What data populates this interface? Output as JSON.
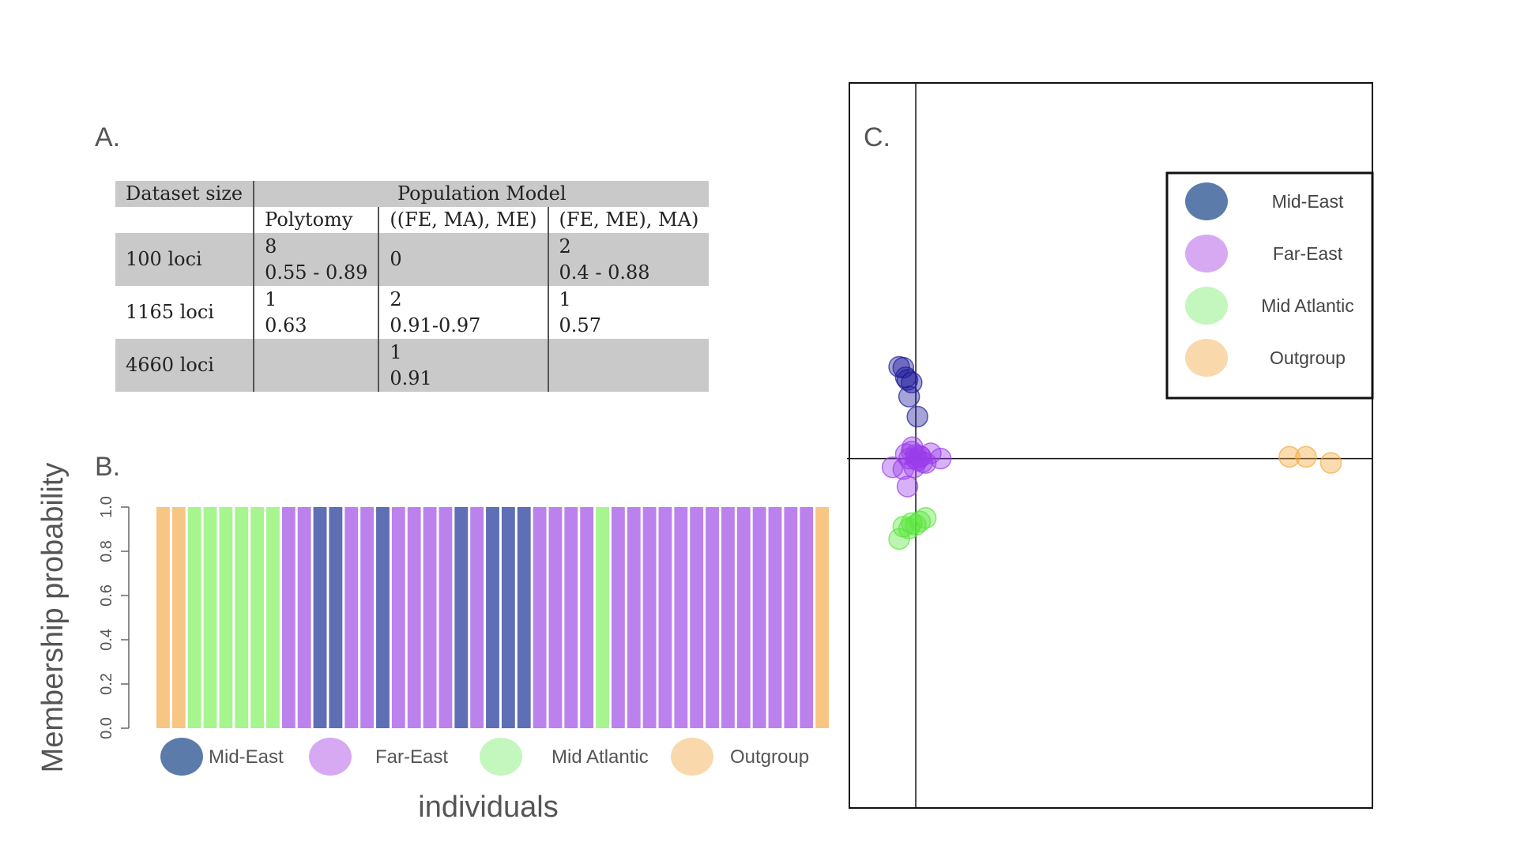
{
  "panels": {
    "a_label": "A.",
    "b_label": "B.",
    "c_label": "C."
  },
  "table": {
    "header_dataset": "Dataset size",
    "header_model": "Population Model",
    "subheaders": [
      "Polytomy",
      "((FE, MA), ME)",
      "(FE, ME), MA)"
    ],
    "rows": [
      {
        "size": "100 loci",
        "cells": [
          [
            "8",
            "0.55 - 0.89"
          ],
          [
            "0",
            ""
          ],
          [
            "2",
            "0.4 - 0.88"
          ]
        ]
      },
      {
        "size": "1165 loci",
        "cells": [
          [
            "1",
            "0.63"
          ],
          [
            "2",
            "0.91-0.97"
          ],
          [
            "1",
            "0.57"
          ]
        ]
      },
      {
        "size": "4660 loci",
        "cells": [
          [
            "",
            ""
          ],
          [
            "1",
            "0.91"
          ],
          [
            "",
            ""
          ]
        ]
      }
    ]
  },
  "colors": {
    "mid_east": "#5e6fb5",
    "far_east": "#bb82ee",
    "mid_atlantic": "#a6f58e",
    "outgroup": "#f7c684",
    "legend_mid_east": "#5b7bab",
    "legend_far_east": "#d6a9f2",
    "legend_mid_atlantic": "#c3f7bd",
    "legend_outgroup": "#f9d9ab"
  },
  "chart_data": [
    {
      "type": "bar",
      "title": "",
      "xlabel": "individuals",
      "ylabel": "Membership probability",
      "ylim": [
        0,
        1
      ],
      "yticks": [
        "0.0",
        "0.2",
        "0.4",
        "0.6",
        "0.8",
        "1.0"
      ],
      "series": [
        {
          "name": "Mid-East",
          "key": "mid_east"
        },
        {
          "name": "Far-East",
          "key": "far_east"
        },
        {
          "name": "Mid Atlantic",
          "key": "mid_atlantic"
        },
        {
          "name": "Outgroup",
          "key": "outgroup"
        }
      ],
      "individuals": [
        "outgroup",
        "outgroup",
        "mid_atlantic",
        "mid_atlantic",
        "mid_atlantic",
        "mid_atlantic",
        "mid_atlantic",
        "mid_atlantic",
        "far_east",
        "far_east",
        "mid_east",
        "mid_east",
        "far_east",
        "far_east",
        "mid_east",
        "far_east",
        "far_east",
        "far_east",
        "far_east",
        "mid_east",
        "far_east",
        "mid_east",
        "mid_east",
        "mid_east",
        "far_east",
        "far_east",
        "far_east",
        "far_east",
        "mid_atlantic",
        "far_east",
        "far_east",
        "far_east",
        "far_east",
        "far_east",
        "far_east",
        "far_east",
        "far_east",
        "far_east",
        "far_east",
        "far_east",
        "far_east",
        "far_east",
        "outgroup"
      ],
      "values": [
        1,
        1,
        1,
        1,
        1,
        1,
        1,
        1,
        1,
        1,
        1,
        1,
        1,
        1,
        1,
        1,
        1,
        1,
        1,
        1,
        1,
        1,
        1,
        1,
        1,
        1,
        1,
        1,
        1,
        1,
        1,
        1,
        1,
        1,
        1,
        1,
        1,
        1,
        1,
        1,
        1,
        1,
        1
      ],
      "legend_position": "bottom"
    },
    {
      "type": "scatter",
      "title": "",
      "xlabel": "",
      "ylabel": "",
      "grid": false,
      "legend_position": "top-right",
      "series": [
        {
          "name": "Mid-East",
          "key": "mid_east",
          "point_color": "#1d1a9a",
          "points": [
            [
              -0.2,
              1.05
            ],
            [
              -0.15,
              1.04
            ],
            [
              -0.12,
              0.93
            ],
            [
              -0.1,
              0.9
            ],
            [
              -0.05,
              0.87
            ],
            [
              -0.08,
              0.71
            ],
            [
              0.02,
              0.48
            ]
          ]
        },
        {
          "name": "Far-East",
          "key": "far_east",
          "point_color": "#9a3cea",
          "points": [
            [
              -0.28,
              -0.1
            ],
            [
              -0.12,
              0.05
            ],
            [
              -0.08,
              0.0
            ],
            [
              -0.05,
              0.08
            ],
            [
              0.0,
              0.04
            ],
            [
              0.02,
              -0.02
            ],
            [
              0.06,
              0.02
            ],
            [
              0.12,
              -0.05
            ],
            [
              0.18,
              0.06
            ],
            [
              -0.15,
              -0.12
            ],
            [
              -0.02,
              -0.1
            ],
            [
              0.08,
              -0.04
            ],
            [
              0.3,
              0.0
            ],
            [
              -0.1,
              -0.32
            ],
            [
              0.0,
              0.0
            ],
            [
              0.05,
              0.03
            ],
            [
              -0.04,
              0.13
            ]
          ]
        },
        {
          "name": "Mid Atlantic",
          "key": "mid_atlantic",
          "point_color": "#58e63a",
          "points": [
            [
              -0.15,
              -0.78
            ],
            [
              -0.05,
              -0.74
            ],
            [
              0.0,
              -0.76
            ],
            [
              0.05,
              -0.72
            ],
            [
              0.12,
              -0.68
            ],
            [
              -0.2,
              -0.92
            ],
            [
              -0.08,
              -0.8
            ]
          ]
        },
        {
          "name": "Outgroup",
          "key": "outgroup",
          "point_color": "#f5a83a",
          "points": [
            [
              4.5,
              0.02
            ],
            [
              4.7,
              0.02
            ],
            [
              5.0,
              -0.05
            ]
          ]
        }
      ],
      "xlim": [
        -0.8,
        5.5
      ],
      "ylim": [
        -4.0,
        4.3
      ]
    }
  ]
}
